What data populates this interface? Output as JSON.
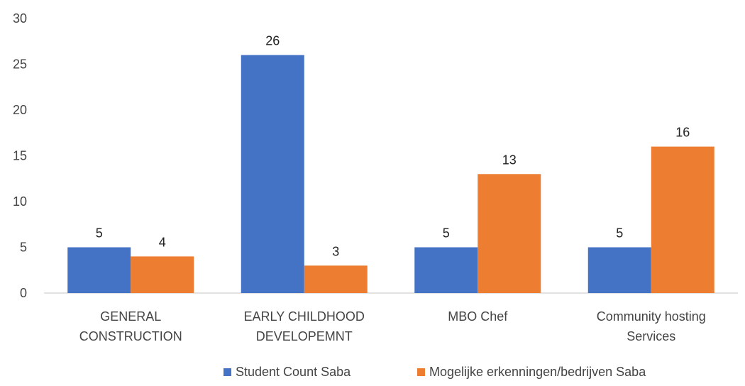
{
  "chart_data": {
    "type": "bar",
    "categories": [
      [
        "GENERAL",
        "CONSTRUCTION"
      ],
      [
        "EARLY CHILDHOOD",
        "DEVELOPEMNT"
      ],
      [
        "MBO Chef"
      ],
      [
        "Community hosting",
        "Services"
      ]
    ],
    "series": [
      {
        "name": "Student Count Saba",
        "color": "#4472C4",
        "values": [
          5,
          26,
          5,
          5
        ]
      },
      {
        "name": "Mogelijke erkenningen/bedrijven Saba",
        "color": "#ED7D31",
        "values": [
          4,
          3,
          13,
          16
        ]
      }
    ],
    "ylim": [
      0,
      30
    ],
    "yticks": [
      0,
      5,
      10,
      15,
      20,
      25,
      30
    ],
    "grid": false,
    "legend_position": "bottom",
    "data_labels": true
  }
}
